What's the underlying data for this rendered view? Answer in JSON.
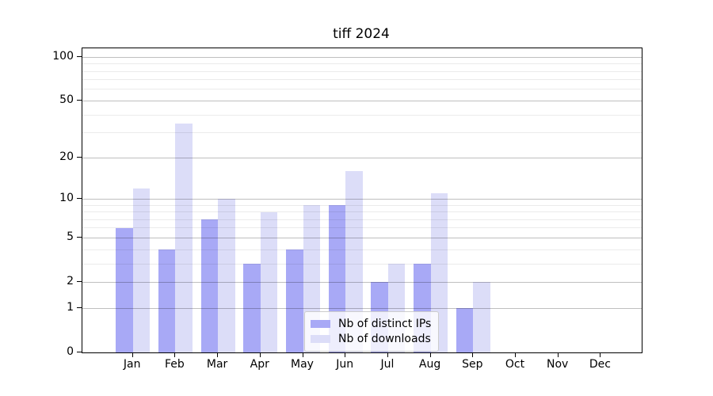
{
  "figure": {
    "title": "tiff 2024"
  },
  "chart_data": {
    "type": "bar",
    "title": "tiff 2024",
    "categories": [
      "Jan 2024",
      "Feb 2024",
      "Mar 2024",
      "Apr 2024",
      "May 2024",
      "Jun 2024",
      "Jul 2024",
      "Aug 2024",
      "Sep 2024",
      "Oct 2024",
      "Nov 2024",
      "Dec 2024"
    ],
    "series": [
      {
        "name": "Nb of distinct IPs",
        "key": "distinct-ips",
        "color": "#a8a9f6",
        "values": [
          6,
          4,
          7,
          3,
          4,
          9,
          2,
          3,
          1,
          0,
          0,
          0
        ]
      },
      {
        "name": "Nb of downloads",
        "key": "downloads",
        "color": "#dcddf8",
        "values": [
          12,
          35,
          10,
          8,
          9,
          16,
          3,
          11,
          2,
          0,
          0,
          0
        ]
      }
    ],
    "xlabel": "",
    "ylabel": "",
    "ylim": [
      0,
      100
    ],
    "y_scale": "log10(1+x)",
    "y_major_ticks": [
      100,
      50,
      20,
      10,
      5,
      2,
      1,
      0
    ],
    "y_minor_gridlines": [
      3,
      4,
      6,
      7,
      8,
      9,
      30,
      40,
      60,
      70,
      80,
      90
    ],
    "grid": "horizontal, drawn over bars",
    "legend_position": "lower center (inside axes)"
  },
  "colors": {
    "distinct_ips_bar": "#a8a9f6",
    "downloads_bar": "#dcddf8",
    "major_grid": "rgba(0,0,0,0.25)",
    "minor_grid": "rgba(0,0,0,0.08)",
    "spine": "#000000",
    "legend_border": "#cccccc"
  }
}
